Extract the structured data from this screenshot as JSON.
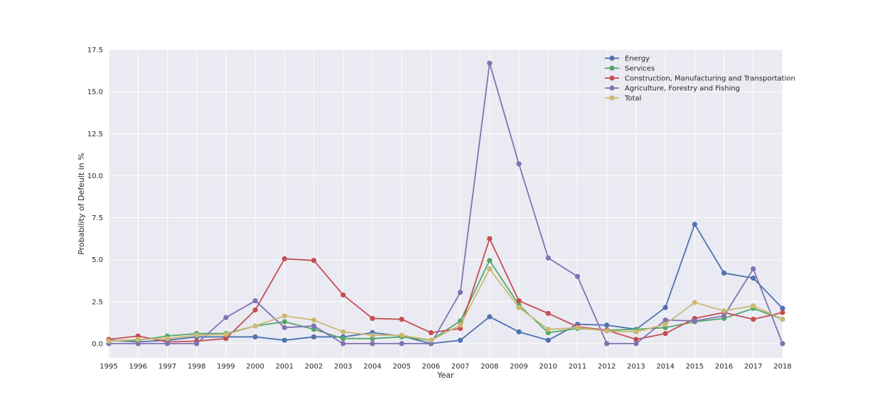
{
  "chart_data": {
    "type": "line",
    "title": "",
    "xlabel": "Year",
    "ylabel": "Probability of Defeult in %",
    "x": [
      1995,
      1996,
      1997,
      1998,
      1999,
      2000,
      2001,
      2002,
      2003,
      2004,
      2005,
      2006,
      2007,
      2008,
      2009,
      2010,
      2011,
      2012,
      2013,
      2014,
      2015,
      2016,
      2017,
      2018
    ],
    "xlim": [
      1995,
      2018
    ],
    "ylim": [
      -0.85,
      17.5
    ],
    "yticks": [
      0.0,
      2.5,
      5.0,
      7.5,
      10.0,
      12.5,
      15.0,
      17.5
    ],
    "ytick_labels": [
      "0.0",
      "2.5",
      "5.0",
      "7.5",
      "10.0",
      "12.5",
      "15.0",
      "17.5"
    ],
    "grid": true,
    "legend_position": "top-right",
    "series": [
      {
        "name": "Energy",
        "color": "#4c72b0",
        "values": [
          0.2,
          0.1,
          0.2,
          0.4,
          0.4,
          0.4,
          0.2,
          0.4,
          0.4,
          0.65,
          0.45,
          0.0,
          0.2,
          1.6,
          0.7,
          0.2,
          1.15,
          1.1,
          0.85,
          2.15,
          7.1,
          4.2,
          3.9,
          2.1
        ]
      },
      {
        "name": "Services",
        "color": "#55a868",
        "values": [
          0.15,
          0.2,
          0.45,
          0.6,
          0.6,
          1.05,
          1.3,
          0.85,
          0.3,
          0.3,
          0.4,
          0.2,
          1.35,
          4.95,
          2.3,
          0.65,
          0.9,
          0.8,
          0.85,
          0.95,
          1.3,
          1.5,
          2.1,
          1.45
        ]
      },
      {
        "name": "Construction, Manufacturing and Transportation",
        "color": "#c44e52",
        "values": [
          0.25,
          0.45,
          0.1,
          0.15,
          0.3,
          2.0,
          5.05,
          4.95,
          2.9,
          1.5,
          1.45,
          0.65,
          0.9,
          6.25,
          2.55,
          1.8,
          1.0,
          0.8,
          0.25,
          0.6,
          1.5,
          1.85,
          1.45,
          1.85
        ]
      },
      {
        "name": "Agriculture, Forestry and Fishing",
        "color": "#8172b2",
        "values": [
          0.0,
          0.0,
          0.0,
          0.0,
          1.55,
          2.55,
          0.95,
          1.05,
          0.0,
          0.0,
          0.0,
          0.0,
          3.05,
          16.7,
          10.7,
          5.1,
          4.0,
          0.0,
          0.0,
          1.4,
          1.35,
          1.65,
          4.45,
          0.0
        ]
      },
      {
        "name": "Total",
        "color": "#ccb974",
        "values": [
          0.15,
          0.25,
          0.3,
          0.5,
          0.55,
          1.05,
          1.65,
          1.4,
          0.7,
          0.5,
          0.5,
          0.2,
          1.1,
          4.45,
          2.15,
          0.85,
          0.95,
          0.75,
          0.7,
          1.15,
          2.45,
          1.95,
          2.25,
          1.45
        ]
      }
    ]
  }
}
